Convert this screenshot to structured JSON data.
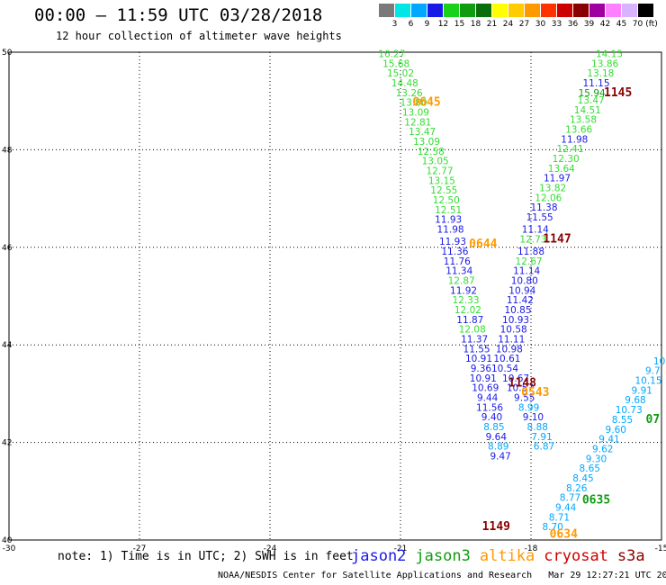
{
  "header": {
    "title": "00:00 – 11:59 UTC 03/28/2018",
    "subtitle": "12 hour collection of altimeter wave heights"
  },
  "legend": {
    "unit": "(ft)",
    "bins": [
      {
        "label": "3",
        "color": "#7a7a7a"
      },
      {
        "label": "6",
        "color": "#00e5e5"
      },
      {
        "label": "9",
        "color": "#00a8ff"
      },
      {
        "label": "12",
        "color": "#1a1ae6"
      },
      {
        "label": "15",
        "color": "#19d119"
      },
      {
        "label": "18",
        "color": "#109c10"
      },
      {
        "label": "21",
        "color": "#0a6e0a"
      },
      {
        "label": "24",
        "color": "#ffff00"
      },
      {
        "label": "27",
        "color": "#ffcc00"
      },
      {
        "label": "30",
        "color": "#ff9900"
      },
      {
        "label": "33",
        "color": "#ff3300"
      },
      {
        "label": "36",
        "color": "#cc0000"
      },
      {
        "label": "39",
        "color": "#8a0000"
      },
      {
        "label": "42",
        "color": "#a000a0"
      },
      {
        "label": "45",
        "color": "#ff80ff"
      },
      {
        "label": "70",
        "color": "#d9b3ff"
      },
      {
        "label": "",
        "color": "#000000"
      }
    ]
  },
  "axes": {
    "x_ticks": [
      "-30",
      "-27",
      "-24",
      "-21",
      "-18",
      "-15"
    ],
    "x_values": [
      -30,
      -27,
      -24,
      -21,
      -18,
      -15
    ],
    "y_ticks": [
      "50",
      "48",
      "46",
      "44",
      "42",
      "40"
    ],
    "y_values": [
      50,
      48,
      46,
      44,
      42,
      40
    ],
    "lon_range": [
      -30,
      -15
    ],
    "lat_range": [
      40,
      50
    ]
  },
  "chart_data": {
    "type": "scatter",
    "colors": {
      "jason2": "#1a1ae6",
      "jason3": "#109c10",
      "altika": "#ff9900",
      "cryosat": "#cc0000",
      "s3a": "#8a0000",
      "light_green": "#33dd33",
      "cyan": "#00a8ff"
    },
    "tracks": [
      {
        "name": "track-a",
        "color": "light_green",
        "points": [
          {
            "lon": -21.2,
            "lat": 49.9,
            "v": "16.27"
          },
          {
            "lon": -21.1,
            "lat": 49.7,
            "v": "15.68"
          },
          {
            "lon": -21.0,
            "lat": 49.5,
            "v": "15.02"
          },
          {
            "lon": -20.9,
            "lat": 49.3,
            "v": "14.48"
          },
          {
            "lon": -20.8,
            "lat": 49.1,
            "v": "13.26"
          },
          {
            "lon": -20.7,
            "lat": 48.9,
            "v": "13.80"
          },
          {
            "lon": -20.65,
            "lat": 48.7,
            "v": "13.09"
          },
          {
            "lon": -20.6,
            "lat": 48.5,
            "v": "12.81"
          },
          {
            "lon": -20.5,
            "lat": 48.3,
            "v": "13.47"
          },
          {
            "lon": -20.4,
            "lat": 48.1,
            "v": "13.09"
          },
          {
            "lon": -20.3,
            "lat": 47.9,
            "v": "12.58"
          },
          {
            "lon": -20.2,
            "lat": 47.7,
            "v": "13.05"
          },
          {
            "lon": -20.1,
            "lat": 47.5,
            "v": "12.77"
          },
          {
            "lon": -20.05,
            "lat": 47.3,
            "v": "13.15"
          },
          {
            "lon": -20.0,
            "lat": 47.1,
            "v": "12.55"
          },
          {
            "lon": -19.95,
            "lat": 46.9,
            "v": "12.50"
          },
          {
            "lon": -19.9,
            "lat": 46.7,
            "v": "12.51"
          }
        ]
      },
      {
        "name": "track-b",
        "color": "jason2",
        "points": [
          {
            "lon": -19.9,
            "lat": 46.5,
            "v": "11.93"
          },
          {
            "lon": -19.85,
            "lat": 46.3,
            "v": "11.98"
          },
          {
            "lon": -19.8,
            "lat": 46.05,
            "v": "11.93"
          },
          {
            "lon": -19.75,
            "lat": 45.85,
            "v": "11.36"
          },
          {
            "lon": -19.7,
            "lat": 45.65,
            "v": "11.76"
          },
          {
            "lon": -19.65,
            "lat": 45.45,
            "v": "11.34"
          },
          {
            "lon": -19.6,
            "lat": 45.25,
            "v": "12.87",
            "c": "light_green"
          },
          {
            "lon": -19.55,
            "lat": 45.05,
            "v": "11.92"
          },
          {
            "lon": -19.5,
            "lat": 44.85,
            "v": "12.33",
            "c": "light_green"
          },
          {
            "lon": -19.45,
            "lat": 44.65,
            "v": "12.02",
            "c": "light_green"
          },
          {
            "lon": -19.4,
            "lat": 44.45,
            "v": "11.87"
          },
          {
            "lon": -19.35,
            "lat": 44.25,
            "v": "12.08",
            "c": "light_green"
          },
          {
            "lon": -19.3,
            "lat": 44.05,
            "v": "11.37"
          },
          {
            "lon": -19.25,
            "lat": 43.85,
            "v": "11.55"
          },
          {
            "lon": -19.2,
            "lat": 43.65,
            "v": "10.91"
          },
          {
            "lon": -19.15,
            "lat": 43.45,
            "v": "9.36"
          },
          {
            "lon": -19.1,
            "lat": 43.25,
            "v": "10.91"
          },
          {
            "lon": -19.05,
            "lat": 43.05,
            "v": "10.69"
          },
          {
            "lon": -19.0,
            "lat": 42.85,
            "v": "9.44"
          },
          {
            "lon": -18.95,
            "lat": 42.65,
            "v": "11.56"
          },
          {
            "lon": -18.9,
            "lat": 42.45,
            "v": "9.40"
          },
          {
            "lon": -18.85,
            "lat": 42.25,
            "v": "8.85",
            "c": "cyan"
          },
          {
            "lon": -18.8,
            "lat": 42.05,
            "v": "9.64"
          },
          {
            "lon": -18.75,
            "lat": 41.85,
            "v": "8.89",
            "c": "cyan"
          },
          {
            "lon": -18.7,
            "lat": 41.65,
            "v": "9.47"
          }
        ]
      },
      {
        "name": "track-c",
        "color": "light_green",
        "points": [
          {
            "lon": -16.2,
            "lat": 49.9,
            "v": "14.15"
          },
          {
            "lon": -16.3,
            "lat": 49.7,
            "v": "13.86"
          },
          {
            "lon": -16.4,
            "lat": 49.5,
            "v": "13.18"
          },
          {
            "lon": -16.5,
            "lat": 49.3,
            "v": "11.15",
            "c": "jason2"
          },
          {
            "lon": -16.6,
            "lat": 49.1,
            "v": "15.94",
            "c": "jason3"
          },
          {
            "lon": -16.62,
            "lat": 48.95,
            "v": "13.47"
          },
          {
            "lon": -16.7,
            "lat": 48.75,
            "v": "14.51"
          },
          {
            "lon": -16.8,
            "lat": 48.55,
            "v": "13.58"
          },
          {
            "lon": -16.9,
            "lat": 48.35,
            "v": "13.66"
          },
          {
            "lon": -17.0,
            "lat": 48.15,
            "v": "11.98",
            "c": "jason2"
          },
          {
            "lon": -17.1,
            "lat": 47.95,
            "v": "12.41"
          },
          {
            "lon": -17.2,
            "lat": 47.75,
            "v": "12.30"
          },
          {
            "lon": -17.3,
            "lat": 47.55,
            "v": "13.64"
          },
          {
            "lon": -17.4,
            "lat": 47.35,
            "v": "11.97",
            "c": "jason2"
          },
          {
            "lon": -17.5,
            "lat": 47.15,
            "v": "13.82"
          },
          {
            "lon": -17.6,
            "lat": 46.95,
            "v": "12.06"
          },
          {
            "lon": -17.7,
            "lat": 46.75,
            "v": "11.38",
            "c": "jason2"
          },
          {
            "lon": -17.8,
            "lat": 46.55,
            "v": "11.55",
            "c": "jason2"
          },
          {
            "lon": -17.9,
            "lat": 46.3,
            "v": "11.14",
            "c": "jason2"
          },
          {
            "lon": -17.95,
            "lat": 46.1,
            "v": "12.73"
          },
          {
            "lon": -18.0,
            "lat": 45.85,
            "v": "11.88",
            "c": "jason2"
          },
          {
            "lon": -18.05,
            "lat": 45.65,
            "v": "12.67"
          },
          {
            "lon": -18.1,
            "lat": 45.45,
            "v": "11.14",
            "c": "jason2"
          },
          {
            "lon": -18.15,
            "lat": 45.25,
            "v": "10.80",
            "c": "jason2"
          },
          {
            "lon": -18.2,
            "lat": 45.05,
            "v": "10.94",
            "c": "jason2"
          },
          {
            "lon": -18.25,
            "lat": 44.85,
            "v": "11.42",
            "c": "jason2"
          },
          {
            "lon": -18.3,
            "lat": 44.65,
            "v": "10.85",
            "c": "jason2"
          },
          {
            "lon": -18.35,
            "lat": 44.45,
            "v": "10.93",
            "c": "jason2"
          },
          {
            "lon": -18.4,
            "lat": 44.25,
            "v": "10.58",
            "c": "jason2"
          },
          {
            "lon": -18.45,
            "lat": 44.05,
            "v": "11.11",
            "c": "jason2"
          },
          {
            "lon": -18.5,
            "lat": 43.85,
            "v": "10.98",
            "c": "jason2"
          },
          {
            "lon": -18.55,
            "lat": 43.65,
            "v": "10.61",
            "c": "jason2"
          },
          {
            "lon": -18.6,
            "lat": 43.45,
            "v": "10.54",
            "c": "jason2"
          },
          {
            "lon": -18.35,
            "lat": 43.25,
            "v": "10.67",
            "c": "jason2"
          },
          {
            "lon": -18.25,
            "lat": 43.05,
            "v": "10.57",
            "c": "jason2"
          },
          {
            "lon": -18.15,
            "lat": 42.85,
            "v": "9.55",
            "c": "jason2"
          },
          {
            "lon": -18.05,
            "lat": 42.65,
            "v": "8.99",
            "c": "cyan"
          },
          {
            "lon": -17.95,
            "lat": 42.45,
            "v": "9.10",
            "c": "jason2"
          },
          {
            "lon": -17.85,
            "lat": 42.25,
            "v": "8.88",
            "c": "cyan"
          },
          {
            "lon": -17.75,
            "lat": 42.05,
            "v": "7.91",
            "c": "cyan"
          },
          {
            "lon": -17.7,
            "lat": 41.85,
            "v": "6.87",
            "c": "cyan"
          }
        ]
      },
      {
        "name": "track-d",
        "color": "cyan",
        "points": [
          {
            "lon": -15.05,
            "lat": 43.6,
            "v": "10"
          },
          {
            "lon": -15.2,
            "lat": 43.4,
            "v": "9.7"
          },
          {
            "lon": -15.3,
            "lat": 43.2,
            "v": "10.15"
          },
          {
            "lon": -15.45,
            "lat": 43.0,
            "v": "9.91"
          },
          {
            "lon": -15.6,
            "lat": 42.8,
            "v": "9.68"
          },
          {
            "lon": -15.75,
            "lat": 42.6,
            "v": "10.73"
          },
          {
            "lon": -15.9,
            "lat": 42.4,
            "v": "8.55"
          },
          {
            "lon": -16.05,
            "lat": 42.2,
            "v": "9.60"
          },
          {
            "lon": -16.2,
            "lat": 42.0,
            "v": "9.41"
          },
          {
            "lon": -16.35,
            "lat": 41.8,
            "v": "9.62"
          },
          {
            "lon": -16.5,
            "lat": 41.6,
            "v": "9.30"
          },
          {
            "lon": -16.65,
            "lat": 41.4,
            "v": "8.65"
          },
          {
            "lon": -16.8,
            "lat": 41.2,
            "v": "8.45"
          },
          {
            "lon": -16.95,
            "lat": 41.0,
            "v": "8.26"
          },
          {
            "lon": -17.1,
            "lat": 40.8,
            "v": "8.77"
          },
          {
            "lon": -17.2,
            "lat": 40.6,
            "v": "9.44"
          },
          {
            "lon": -17.35,
            "lat": 40.4,
            "v": "8.71"
          },
          {
            "lon": -17.5,
            "lat": 40.2,
            "v": "8.70"
          }
        ]
      }
    ],
    "time_labels": [
      {
        "lon": -20.4,
        "lat": 48.9,
        "t": "0645",
        "c": "altika"
      },
      {
        "lon": -19.1,
        "lat": 46.0,
        "t": "0644",
        "c": "altika"
      },
      {
        "lon": -16.0,
        "lat": 49.1,
        "t": "1145",
        "c": "s3a"
      },
      {
        "lon": -17.4,
        "lat": 46.1,
        "t": "1147",
        "c": "s3a"
      },
      {
        "lon": -18.2,
        "lat": 43.15,
        "t": "1148",
        "c": "s3a"
      },
      {
        "lon": -17.9,
        "lat": 42.95,
        "t": "0543",
        "c": "altika"
      },
      {
        "lon": -18.8,
        "lat": 40.2,
        "t": "1149",
        "c": "s3a"
      },
      {
        "lon": -15.2,
        "lat": 42.4,
        "t": "07",
        "c": "jason3"
      },
      {
        "lon": -16.5,
        "lat": 40.75,
        "t": "0635",
        "c": "jason3"
      },
      {
        "lon": -17.25,
        "lat": 40.05,
        "t": "0634",
        "c": "altika"
      }
    ]
  },
  "note": "note: 1) Time is in UTC; 2) SWH is in feet",
  "satellites": [
    {
      "name": "jason2",
      "color": "#1a1ae6"
    },
    {
      "name": "jason3",
      "color": "#109c10"
    },
    {
      "name": "altika",
      "color": "#ff9900"
    },
    {
      "name": "cryosat",
      "color": "#cc0000"
    },
    {
      "name": "s3a",
      "color": "#8a0000"
    }
  ],
  "footer": "NOAA/NESDIS Center for Satellite Applications and Research   Mar 29 12:27:21 UTC 2018"
}
